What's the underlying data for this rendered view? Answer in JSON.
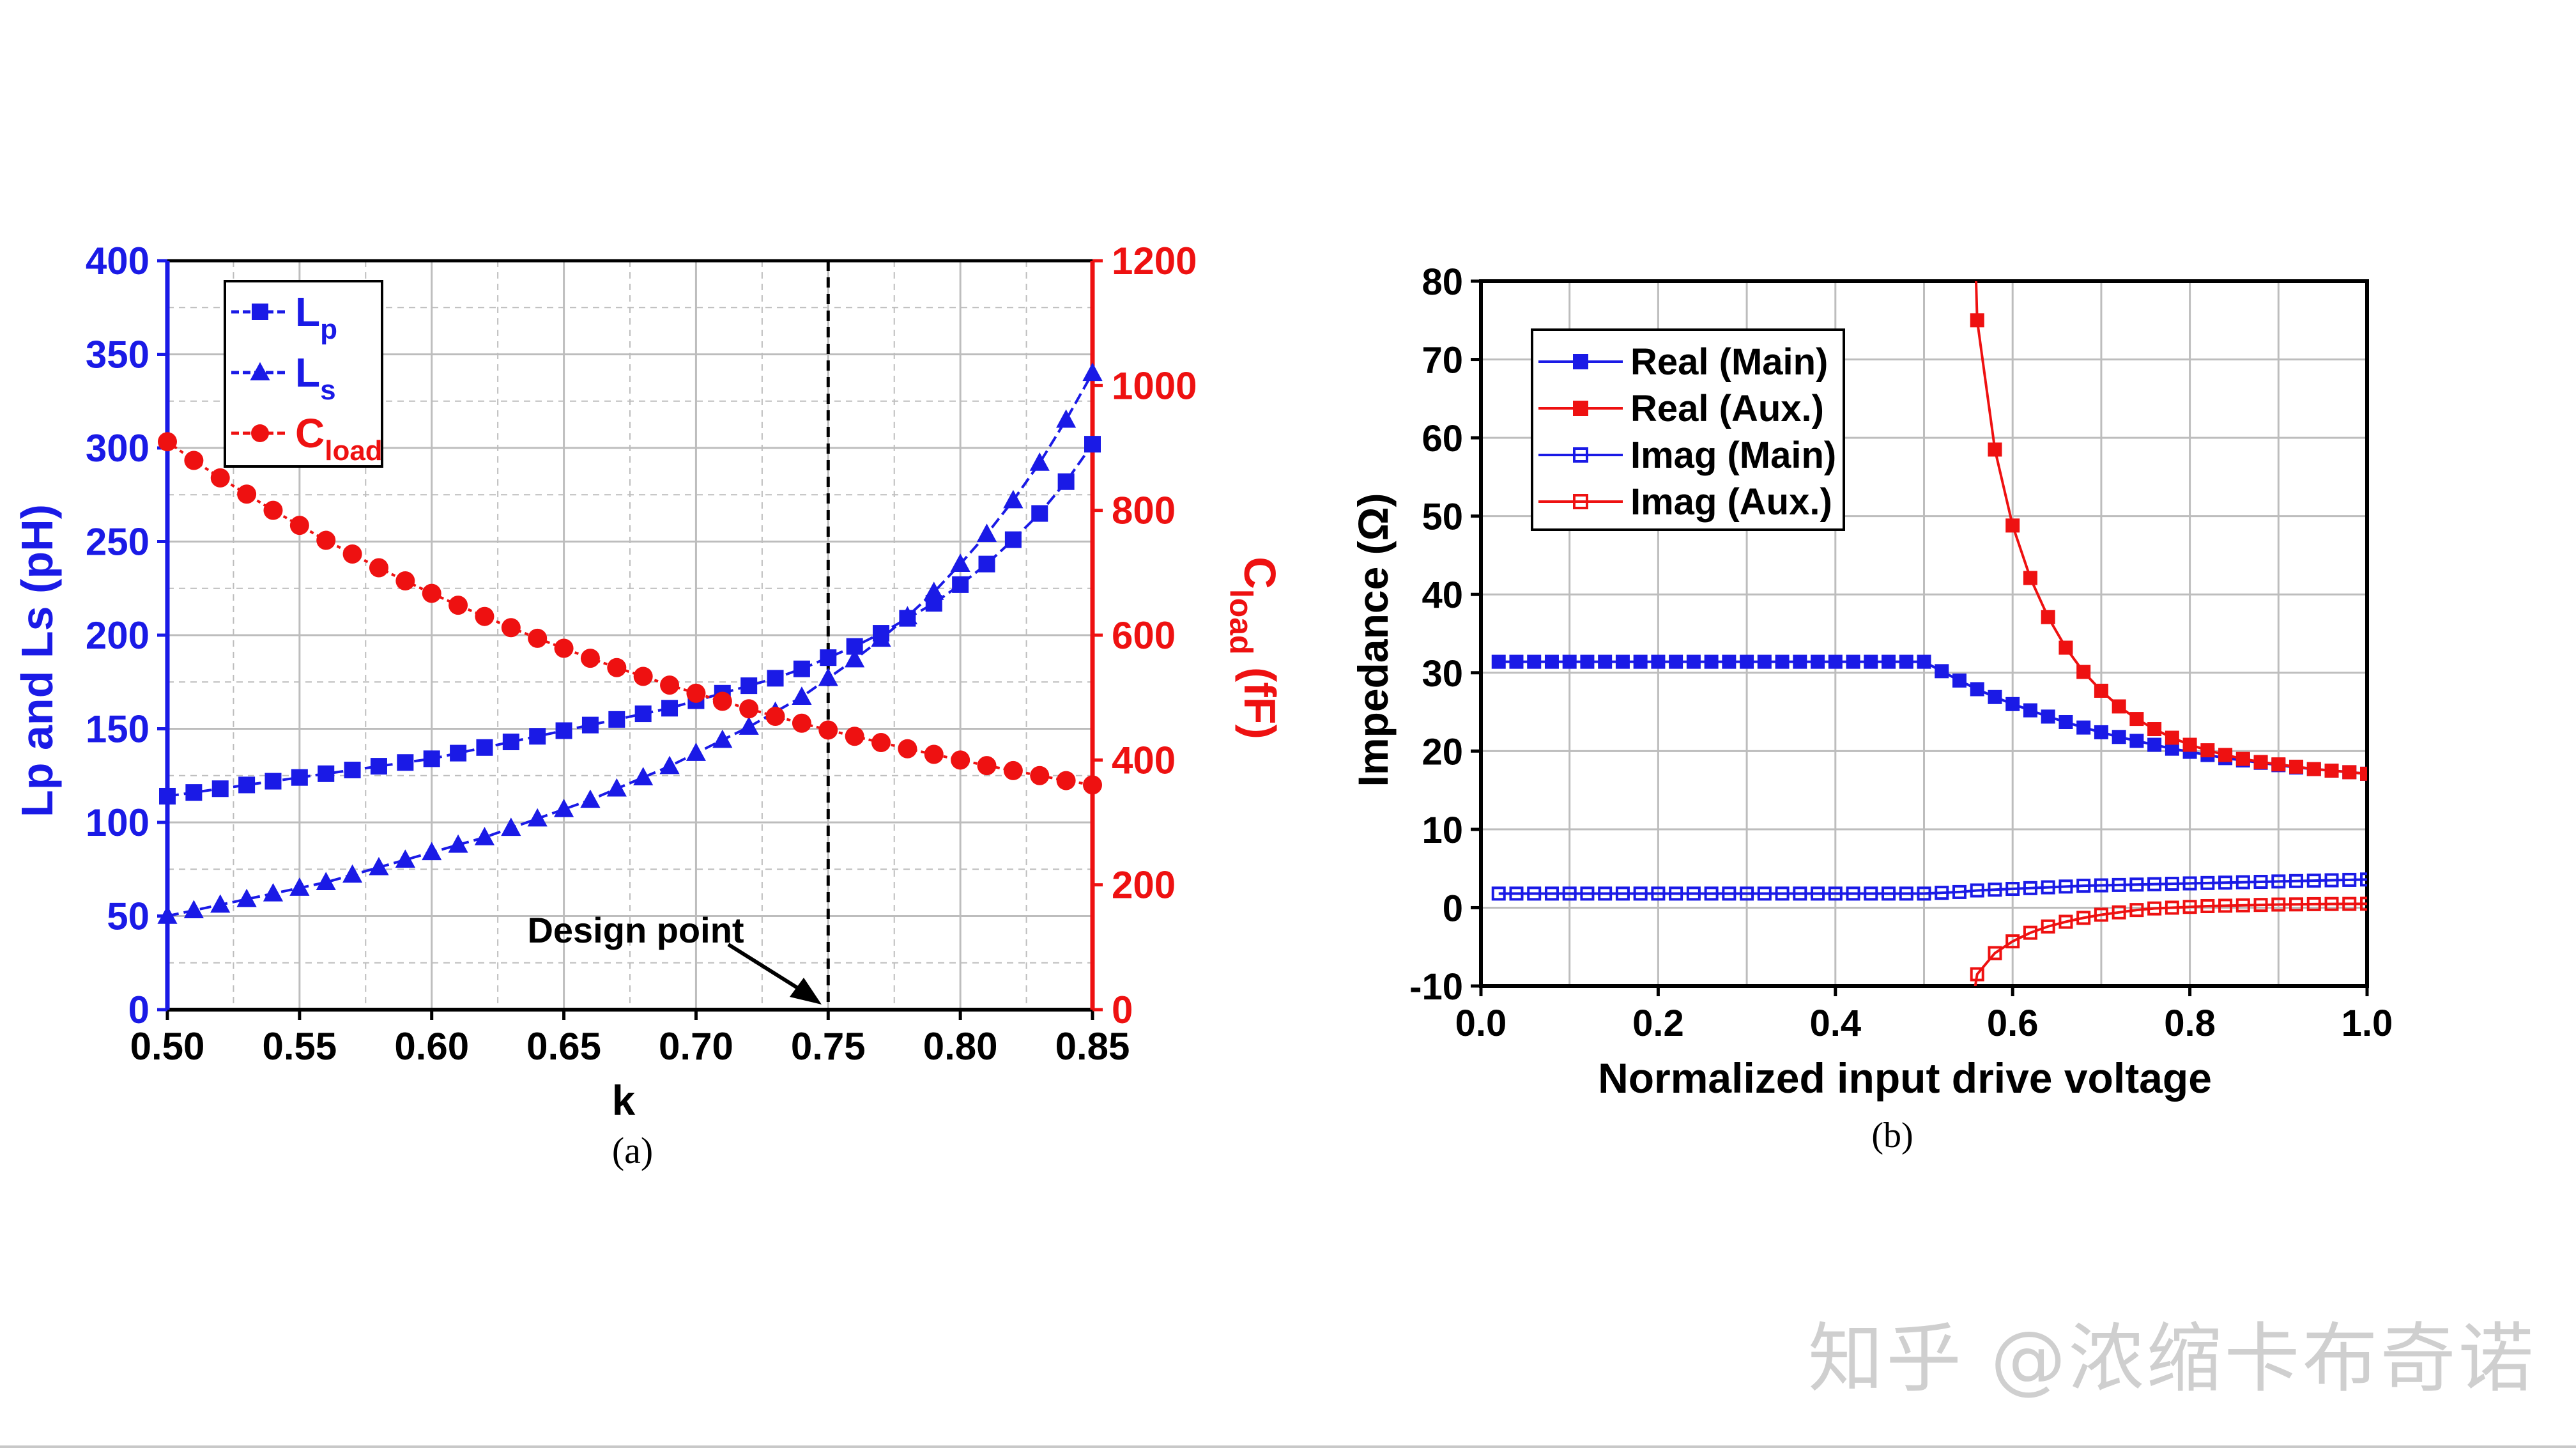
{
  "figure_a": {
    "caption": "(a)",
    "annotation": "Design point",
    "legend": [
      {
        "base": "L",
        "sub": "p",
        "color": "#1a1ae6"
      },
      {
        "base": "L",
        "sub": "s",
        "color": "#1a1ae6"
      },
      {
        "base": "C",
        "sub": "load",
        "color": "#ee1111"
      }
    ],
    "y_left_label": "Lp and Ls (pH)",
    "y_right_label_base": "C",
    "y_right_label_sub": "load",
    "y_right_label_unit": " (fF)",
    "x_label": "k"
  },
  "figure_b": {
    "caption": "(b)",
    "legend": [
      "Real (Main)",
      "Real (Aux.)",
      "Imag (Main)",
      "Imag (Aux.)"
    ],
    "y_label": "Impedance (Ω)",
    "x_label": "Normalized input drive voltage"
  },
  "watermark": "知乎 @浓缩卡布奇诺",
  "colors": {
    "blue": "#1a1ae6",
    "red": "#ee1111",
    "grid": "#bdbdbd"
  },
  "chart_data": [
    {
      "type": "line",
      "title": "",
      "xlabel": "k",
      "ylabel": "Lp and Ls (pH)",
      "ylabel_right": "Cload (fF)",
      "xlim": [
        0.5,
        0.85
      ],
      "ylim": [
        0,
        400
      ],
      "ylim_right": [
        0,
        1200
      ],
      "xticks": [
        "0.50",
        "0.55",
        "0.60",
        "0.65",
        "0.70",
        "0.75",
        "0.80",
        "0.85"
      ],
      "yticks": [
        "0",
        "50",
        "100",
        "150",
        "200",
        "250",
        "300",
        "350",
        "400"
      ],
      "yticks_right": [
        "0",
        "200",
        "400",
        "600",
        "800",
        "1000",
        "1200"
      ],
      "vline_x": 0.75,
      "legend_position": "top-left",
      "series": [
        {
          "name": "Lp",
          "axis": "left",
          "marker": "square",
          "x": [
            0.5,
            0.51,
            0.52,
            0.53,
            0.54,
            0.55,
            0.56,
            0.57,
            0.58,
            0.59,
            0.6,
            0.61,
            0.62,
            0.63,
            0.64,
            0.65,
            0.66,
            0.67,
            0.68,
            0.69,
            0.7,
            0.71,
            0.72,
            0.73,
            0.74,
            0.75,
            0.76,
            0.77,
            0.78,
            0.79,
            0.8,
            0.81,
            0.82,
            0.83,
            0.84,
            0.85
          ],
          "y": [
            114,
            116,
            118,
            120,
            122,
            124,
            126,
            128,
            130,
            132,
            134,
            137,
            140,
            143,
            146,
            149,
            152,
            155,
            158,
            161,
            165,
            169,
            173,
            177,
            182,
            188,
            194,
            201,
            209,
            217,
            227,
            238,
            251,
            265,
            282,
            302
          ]
        },
        {
          "name": "Ls",
          "axis": "left",
          "marker": "triangle",
          "x": [
            0.5,
            0.51,
            0.52,
            0.53,
            0.54,
            0.55,
            0.56,
            0.57,
            0.58,
            0.59,
            0.6,
            0.61,
            0.62,
            0.63,
            0.64,
            0.65,
            0.66,
            0.67,
            0.68,
            0.69,
            0.7,
            0.71,
            0.72,
            0.73,
            0.74,
            0.75,
            0.76,
            0.77,
            0.78,
            0.79,
            0.8,
            0.81,
            0.82,
            0.83,
            0.84,
            0.85
          ],
          "y": [
            50,
            53,
            56,
            59,
            62,
            65,
            68,
            72,
            76,
            80,
            84,
            88,
            92,
            97,
            102,
            107,
            112,
            118,
            124,
            130,
            137,
            144,
            151,
            159,
            167,
            177,
            187,
            198,
            210,
            223,
            238,
            254,
            272,
            292,
            315,
            340
          ]
        },
        {
          "name": "Cload",
          "axis": "right",
          "marker": "circle",
          "x": [
            0.5,
            0.51,
            0.52,
            0.53,
            0.54,
            0.55,
            0.56,
            0.57,
            0.58,
            0.59,
            0.6,
            0.61,
            0.62,
            0.63,
            0.64,
            0.65,
            0.66,
            0.67,
            0.68,
            0.69,
            0.7,
            0.71,
            0.72,
            0.73,
            0.74,
            0.75,
            0.76,
            0.77,
            0.78,
            0.79,
            0.8,
            0.81,
            0.82,
            0.83,
            0.84,
            0.85
          ],
          "y": [
            910,
            880,
            852,
            826,
            800,
            776,
            752,
            730,
            708,
            687,
            667,
            648,
            630,
            612,
            595,
            579,
            563,
            548,
            534,
            520,
            507,
            494,
            482,
            470,
            459,
            448,
            438,
            428,
            418,
            409,
            400,
            391,
            383,
            375,
            367,
            360
          ]
        }
      ]
    },
    {
      "type": "line",
      "title": "",
      "xlabel": "Normalized input drive voltage",
      "ylabel": "Impedance (Ω)",
      "xlim": [
        0.0,
        1.0
      ],
      "ylim": [
        -10,
        80
      ],
      "xticks": [
        "0.0",
        "0.2",
        "0.4",
        "0.6",
        "0.8",
        "1.0"
      ],
      "yticks": [
        "-10",
        "0",
        "10",
        "20",
        "30",
        "40",
        "50",
        "60",
        "70",
        "80"
      ],
      "legend_position": "top-left",
      "series": [
        {
          "name": "Real (Main)",
          "marker": "filled-square",
          "x": [
            0.02,
            0.04,
            0.06,
            0.08,
            0.1,
            0.12,
            0.14,
            0.16,
            0.18,
            0.2,
            0.22,
            0.24,
            0.26,
            0.28,
            0.3,
            0.32,
            0.34,
            0.36,
            0.38,
            0.4,
            0.42,
            0.44,
            0.46,
            0.48,
            0.5,
            0.52,
            0.54,
            0.56,
            0.58,
            0.6,
            0.62,
            0.64,
            0.66,
            0.68,
            0.7,
            0.72,
            0.74,
            0.76,
            0.78,
            0.8,
            0.82,
            0.84,
            0.86,
            0.88,
            0.9,
            0.92,
            0.94,
            0.96,
            0.98,
            1.0
          ],
          "y": [
            31.4,
            31.4,
            31.4,
            31.4,
            31.4,
            31.4,
            31.4,
            31.4,
            31.4,
            31.4,
            31.4,
            31.4,
            31.4,
            31.4,
            31.4,
            31.4,
            31.4,
            31.4,
            31.4,
            31.4,
            31.4,
            31.4,
            31.4,
            31.4,
            31.4,
            30.2,
            29.0,
            27.9,
            26.9,
            26.0,
            25.2,
            24.4,
            23.7,
            23.0,
            22.4,
            21.8,
            21.3,
            20.8,
            20.3,
            19.9,
            19.5,
            19.1,
            18.8,
            18.5,
            18.2,
            17.9,
            17.7,
            17.5,
            17.3,
            17.1
          ]
        },
        {
          "name": "Real (Aux.)",
          "marker": "filled-square",
          "x": [
            0.56,
            0.58,
            0.6,
            0.62,
            0.64,
            0.66,
            0.68,
            0.7,
            0.72,
            0.74,
            0.76,
            0.78,
            0.8,
            0.82,
            0.84,
            0.86,
            0.88,
            0.9,
            0.92,
            0.94,
            0.96,
            0.98,
            1.0
          ],
          "y": [
            75,
            58.5,
            48.8,
            42.1,
            37.1,
            33.2,
            30.1,
            27.7,
            25.7,
            24.1,
            22.8,
            21.7,
            20.8,
            20.1,
            19.5,
            19.0,
            18.6,
            18.3,
            18.0,
            17.7,
            17.5,
            17.3,
            17.1
          ]
        },
        {
          "name": "Imag (Main)",
          "marker": "open-square",
          "x": [
            0.02,
            0.04,
            0.06,
            0.08,
            0.1,
            0.12,
            0.14,
            0.16,
            0.18,
            0.2,
            0.22,
            0.24,
            0.26,
            0.28,
            0.3,
            0.32,
            0.34,
            0.36,
            0.38,
            0.4,
            0.42,
            0.44,
            0.46,
            0.48,
            0.5,
            0.52,
            0.54,
            0.56,
            0.58,
            0.6,
            0.62,
            0.64,
            0.66,
            0.68,
            0.7,
            0.72,
            0.74,
            0.76,
            0.78,
            0.8,
            0.82,
            0.84,
            0.86,
            0.88,
            0.9,
            0.92,
            0.94,
            0.96,
            0.98,
            1.0
          ],
          "y": [
            1.8,
            1.8,
            1.8,
            1.8,
            1.8,
            1.8,
            1.8,
            1.8,
            1.8,
            1.8,
            1.8,
            1.8,
            1.8,
            1.8,
            1.8,
            1.8,
            1.8,
            1.8,
            1.8,
            1.8,
            1.8,
            1.8,
            1.8,
            1.8,
            1.8,
            1.9,
            2.0,
            2.2,
            2.3,
            2.4,
            2.5,
            2.6,
            2.7,
            2.8,
            2.85,
            2.9,
            2.95,
            3.0,
            3.05,
            3.1,
            3.15,
            3.2,
            3.25,
            3.3,
            3.35,
            3.4,
            3.45,
            3.5,
            3.55,
            3.6
          ]
        },
        {
          "name": "Imag (Aux.)",
          "marker": "open-square",
          "x": [
            0.56,
            0.58,
            0.6,
            0.62,
            0.64,
            0.66,
            0.68,
            0.7,
            0.72,
            0.74,
            0.76,
            0.78,
            0.8,
            0.82,
            0.84,
            0.86,
            0.88,
            0.9,
            0.92,
            0.94,
            0.96,
            0.98,
            1.0
          ],
          "y": [
            -8.5,
            -5.8,
            -4.3,
            -3.2,
            -2.4,
            -1.8,
            -1.3,
            -0.9,
            -0.6,
            -0.3,
            -0.1,
            0.0,
            0.1,
            0.2,
            0.25,
            0.3,
            0.35,
            0.4,
            0.42,
            0.45,
            0.47,
            0.48,
            0.5
          ]
        }
      ]
    }
  ]
}
